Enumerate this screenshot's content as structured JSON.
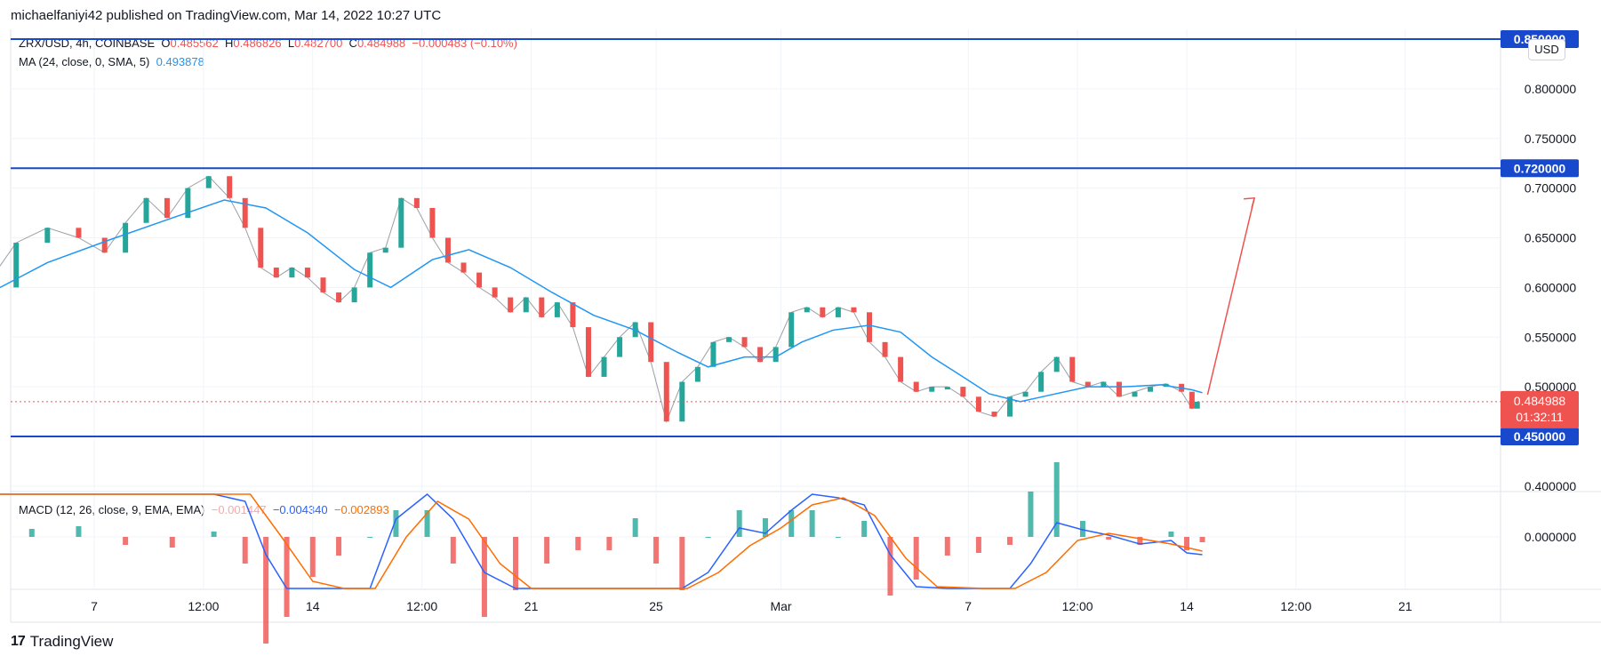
{
  "header": {
    "published": "michaelfaniyi42 published on TradingView.com, Mar 14, 2022 10:27 UTC"
  },
  "footer": {
    "brand": "TradingView",
    "logo": "17"
  },
  "legend": {
    "symbol": "ZRX/USD, 4h, COINBASE",
    "o_label": "O",
    "o": "0.485562",
    "h_label": "H",
    "h": "0.486826",
    "l_label": "L",
    "l": "0.482700",
    "c_label": "C",
    "c": "0.484988",
    "change": "−0.000483 (−0.10%)",
    "ma_label": "MA (24, close, 0, SMA, 5)",
    "ma_value": "0.493878",
    "macd_label": "MACD (12, 26, close, 9, EMA, EMA)",
    "macd_hist": "−0.001447",
    "macd_line": "−0.004340",
    "macd_signal": "−0.002893"
  },
  "currency": "USD",
  "colors": {
    "up": "#26a69a",
    "down": "#ef5350",
    "ma": "#2196f3",
    "level": "#1848cc",
    "macd": "#2962ff",
    "signal": "#ff6d00",
    "arrow": "#ef5350"
  },
  "chart_data": {
    "type": "line",
    "title": "ZRX/USD, 4h, COINBASE",
    "ylim": [
      0.39,
      0.855
    ],
    "y_ticks": [
      "0.800000",
      "0.750000",
      "0.700000",
      "0.650000",
      "0.600000",
      "0.550000",
      "0.500000",
      "0.400000"
    ],
    "x_ticks": [
      "7",
      "12:00",
      "14",
      "12:00",
      "21",
      "25",
      "Mar",
      "7",
      "12:00",
      "14",
      "12:00",
      "21"
    ],
    "horizontal_levels": [
      {
        "value": 0.85,
        "label": "0.850000"
      },
      {
        "value": 0.72,
        "label": "0.720000"
      },
      {
        "value": 0.45,
        "label": "0.450000"
      }
    ],
    "last_price": {
      "value": 0.484988,
      "label": "0.484988",
      "countdown": "01:32:11"
    },
    "price_path": [
      [
        "Feb 3 12:00",
        0.6
      ],
      [
        "Feb 4 12:00",
        0.645
      ],
      [
        "Feb 5 12:00",
        0.66
      ],
      [
        "Feb 6 12:00",
        0.65
      ],
      [
        "Feb 7 08:00",
        0.635
      ],
      [
        "Feb 8 00:00",
        0.665
      ],
      [
        "Feb 8 16:00",
        0.69
      ],
      [
        "Feb 9 08:00",
        0.67
      ],
      [
        "Feb 10 00:00",
        0.7
      ],
      [
        "Feb 10 16:00",
        0.712
      ],
      [
        "Feb 11 08:00",
        0.69
      ],
      [
        "Feb 11 20:00",
        0.66
      ],
      [
        "Feb 12 08:00",
        0.62
      ],
      [
        "Feb 12 20:00",
        0.61
      ],
      [
        "Feb 13 08:00",
        0.62
      ],
      [
        "Feb 13 20:00",
        0.61
      ],
      [
        "Feb 14 08:00",
        0.595
      ],
      [
        "Feb 14 20:00",
        0.585
      ],
      [
        "Feb 15 08:00",
        0.6
      ],
      [
        "Feb 15 20:00",
        0.635
      ],
      [
        "Feb 16 08:00",
        0.64
      ],
      [
        "Feb 16 20:00",
        0.69
      ],
      [
        "Feb 17 08:00",
        0.68
      ],
      [
        "Feb 17 20:00",
        0.65
      ],
      [
        "Feb 18 08:00",
        0.625
      ],
      [
        "Feb 18 20:00",
        0.615
      ],
      [
        "Feb 19 08:00",
        0.6
      ],
      [
        "Feb 19 20:00",
        0.59
      ],
      [
        "Feb 20 08:00",
        0.575
      ],
      [
        "Feb 20 20:00",
        0.59
      ],
      [
        "Feb 21 08:00",
        0.57
      ],
      [
        "Feb 21 20:00",
        0.585
      ],
      [
        "Feb 22 08:00",
        0.56
      ],
      [
        "Feb 22 20:00",
        0.51
      ],
      [
        "Feb 23 08:00",
        0.53
      ],
      [
        "Feb 23 20:00",
        0.55
      ],
      [
        "Feb 24 08:00",
        0.565
      ],
      [
        "Feb 24 20:00",
        0.525
      ],
      [
        "Feb 25 08:00",
        0.465
      ],
      [
        "Feb 25 20:00",
        0.505
      ],
      [
        "Feb 26 08:00",
        0.52
      ],
      [
        "Feb 26 20:00",
        0.545
      ],
      [
        "Feb 27 08:00",
        0.55
      ],
      [
        "Feb 27 20:00",
        0.54
      ],
      [
        "Feb 28 08:00",
        0.525
      ],
      [
        "Feb 28 20:00",
        0.54
      ],
      [
        "Mar 1 08:00",
        0.575
      ],
      [
        "Mar 1 20:00",
        0.58
      ],
      [
        "Mar 2 08:00",
        0.57
      ],
      [
        "Mar 2 20:00",
        0.58
      ],
      [
        "Mar 3 08:00",
        0.575
      ],
      [
        "Mar 3 20:00",
        0.545
      ],
      [
        "Mar 4 08:00",
        0.53
      ],
      [
        "Mar 4 20:00",
        0.505
      ],
      [
        "Mar 5 08:00",
        0.495
      ],
      [
        "Mar 5 20:00",
        0.5
      ],
      [
        "Mar 6 08:00",
        0.5
      ],
      [
        "Mar 6 20:00",
        0.49
      ],
      [
        "Mar 7 08:00",
        0.475
      ],
      [
        "Mar 7 20:00",
        0.47
      ],
      [
        "Mar 8 08:00",
        0.49
      ],
      [
        "Mar 8 20:00",
        0.495
      ],
      [
        "Mar 9 08:00",
        0.515
      ],
      [
        "Mar 9 20:00",
        0.53
      ],
      [
        "Mar 10 08:00",
        0.505
      ],
      [
        "Mar 10 20:00",
        0.5
      ],
      [
        "Mar 11 08:00",
        0.505
      ],
      [
        "Mar 11 20:00",
        0.49
      ],
      [
        "Mar 12 08:00",
        0.495
      ],
      [
        "Mar 12 20:00",
        0.5
      ],
      [
        "Mar 13 08:00",
        0.503
      ],
      [
        "Mar 13 20:00",
        0.495
      ],
      [
        "Mar 14 04:00",
        0.478
      ],
      [
        "Mar 14 08:00",
        0.485
      ]
    ],
    "ma_path": [
      [
        "Feb 3 12:00",
        0.592
      ],
      [
        "Feb 5 12:00",
        0.625
      ],
      [
        "Feb 7 12:00",
        0.648
      ],
      [
        "Feb 9 12:00",
        0.67
      ],
      [
        "Feb 11 04:00",
        0.688
      ],
      [
        "Feb 12 12:00",
        0.68
      ],
      [
        "Feb 13 20:00",
        0.655
      ],
      [
        "Feb 15 08:00",
        0.618
      ],
      [
        "Feb 16 12:00",
        0.6
      ],
      [
        "Feb 17 20:00",
        0.628
      ],
      [
        "Feb 19 00:00",
        0.638
      ],
      [
        "Feb 20 08:00",
        0.62
      ],
      [
        "Feb 21 16:00",
        0.595
      ],
      [
        "Feb 23 00:00",
        0.572
      ],
      [
        "Feb 24 08:00",
        0.557
      ],
      [
        "Feb 25 16:00",
        0.535
      ],
      [
        "Feb 26 16:00",
        0.52
      ],
      [
        "Feb 27 20:00",
        0.53
      ],
      [
        "Feb 28 20:00",
        0.53
      ],
      [
        "Mar 1 16:00",
        0.545
      ],
      [
        "Mar 2 16:00",
        0.557
      ],
      [
        "Mar 3 20:00",
        0.562
      ],
      [
        "Mar 4 20:00",
        0.555
      ],
      [
        "Mar 5 20:00",
        0.53
      ],
      [
        "Mar 6 20:00",
        0.51
      ],
      [
        "Mar 7 16:00",
        0.493
      ],
      [
        "Mar 8 16:00",
        0.485
      ],
      [
        "Mar 9 16:00",
        0.492
      ],
      [
        "Mar 10 20:00",
        0.5
      ],
      [
        "Mar 12 00:00",
        0.5
      ],
      [
        "Mar 13 04:00",
        0.502
      ],
      [
        "Mar 14 04:00",
        0.497
      ],
      [
        "Mar 14 12:00",
        0.494
      ]
    ],
    "arrow": {
      "from": [
        "Mar 14 16:00",
        0.492
      ],
      "to": [
        "Mar 16 04:00",
        0.69
      ]
    },
    "macd": {
      "ylim": [
        -0.05,
        0.05
      ],
      "y_ticks": [
        "0.000000"
      ],
      "macd_path": [
        [
          "Feb 3 12:00",
          0.035
        ],
        [
          "Feb 5 00:00",
          0.048
        ],
        [
          "Feb 6 12:00",
          0.052
        ],
        [
          "Feb 8 00:00",
          0.045
        ],
        [
          "Feb 9 12:00",
          0.04
        ],
        [
          "Feb 10 20:00",
          0.042
        ],
        [
          "Feb 11 20:00",
          0.02
        ],
        [
          "Feb 12 12:00",
          -0.01
        ],
        [
          "Feb 13 04:00",
          -0.03
        ],
        [
          "Feb 14 00:00",
          -0.04
        ],
        [
          "Feb 14 20:00",
          -0.045
        ],
        [
          "Feb 15 20:00",
          -0.03
        ],
        [
          "Feb 16 16:00",
          0.01
        ],
        [
          "Feb 17 16:00",
          0.03
        ],
        [
          "Feb 18 12:00",
          0.01
        ],
        [
          "Feb 19 12:00",
          -0.02
        ],
        [
          "Feb 20 12:00",
          -0.035
        ],
        [
          "Feb 21 12:00",
          -0.04
        ],
        [
          "Feb 22 12:00",
          -0.045
        ],
        [
          "Feb 23 12:00",
          -0.05
        ],
        [
          "Feb 24 08:00",
          -0.038
        ],
        [
          "Feb 25 00:00",
          -0.055
        ],
        [
          "Feb 25 20:00",
          -0.06
        ],
        [
          "Feb 26 16:00",
          -0.02
        ],
        [
          "Feb 27 16:00",
          0.005
        ],
        [
          "Feb 28 12:00",
          0.002
        ],
        [
          "Mar 1 08:00",
          0.015
        ],
        [
          "Mar 2 00:00",
          0.028
        ],
        [
          "Mar 2 20:00",
          0.022
        ],
        [
          "Mar 3 16:00",
          0.018
        ],
        [
          "Mar 4 12:00",
          -0.01
        ],
        [
          "Mar 5 08:00",
          -0.028
        ],
        [
          "Mar 6 08:00",
          -0.035
        ],
        [
          "Mar 7 08:00",
          -0.04
        ],
        [
          "Mar 8 08:00",
          -0.035
        ],
        [
          "Mar 9 00:00",
          -0.015
        ],
        [
          "Mar 9 20:00",
          0.008
        ],
        [
          "Mar 10 16:00",
          0.004
        ],
        [
          "Mar 11 12:00",
          0.001
        ],
        [
          "Mar 12 12:00",
          -0.004
        ],
        [
          "Mar 13 12:00",
          -0.002
        ],
        [
          "Mar 14 00:00",
          -0.009
        ],
        [
          "Mar 14 12:00",
          -0.01
        ]
      ],
      "signal_path": [
        [
          "Feb 3 12:00",
          0.03
        ],
        [
          "Feb 5 12:00",
          0.045
        ],
        [
          "Feb 7 00:00",
          0.048
        ],
        [
          "Feb 9 00:00",
          0.044
        ],
        [
          "Feb 10 20:00",
          0.04
        ],
        [
          "Feb 12 00:00",
          0.03
        ],
        [
          "Feb 13 00:00",
          0.0
        ],
        [
          "Feb 14 00:00",
          -0.025
        ],
        [
          "Feb 15 00:00",
          -0.038
        ],
        [
          "Feb 16 00:00",
          -0.03
        ],
        [
          "Feb 17 00:00",
          0.0
        ],
        [
          "Feb 18 00:00",
          0.02
        ],
        [
          "Feb 19 00:00",
          0.01
        ],
        [
          "Feb 20 00:00",
          -0.015
        ],
        [
          "Feb 21 00:00",
          -0.03
        ],
        [
          "Feb 22 12:00",
          -0.04
        ],
        [
          "Feb 24 00:00",
          -0.045
        ],
        [
          "Feb 25 00:00",
          -0.045
        ],
        [
          "Feb 26 00:00",
          -0.04
        ],
        [
          "Feb 27 00:00",
          -0.02
        ],
        [
          "Feb 28 00:00",
          -0.005
        ],
        [
          "Mar 1 00:00",
          0.005
        ],
        [
          "Mar 2 00:00",
          0.018
        ],
        [
          "Mar 3 00:00",
          0.022
        ],
        [
          "Mar 4 00:00",
          0.012
        ],
        [
          "Mar 5 00:00",
          -0.012
        ],
        [
          "Mar 6 00:00",
          -0.028
        ],
        [
          "Mar 7 12:00",
          -0.034
        ],
        [
          "Mar 8 12:00",
          -0.032
        ],
        [
          "Mar 9 12:00",
          -0.02
        ],
        [
          "Mar 10 12:00",
          -0.002
        ],
        [
          "Mar 11 12:00",
          0.002
        ],
        [
          "Mar 12 12:00",
          -0.001
        ],
        [
          "Mar 13 12:00",
          -0.004
        ],
        [
          "Mar 14 12:00",
          -0.008
        ]
      ]
    }
  }
}
